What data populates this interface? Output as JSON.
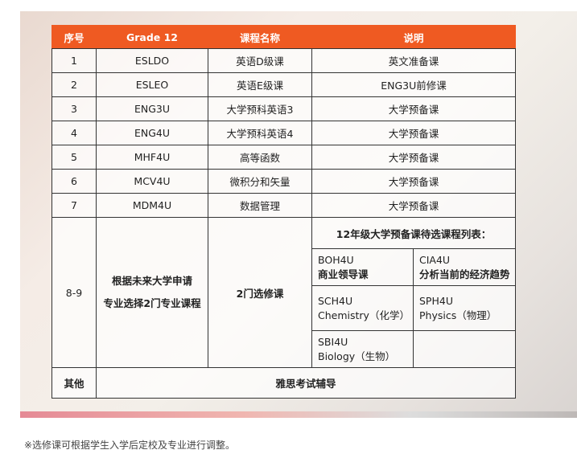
{
  "header": [
    "序号",
    "Grade 12",
    "课程名称",
    "说明"
  ],
  "rows": [
    {
      "no": "1",
      "code": "ESLDO",
      "name": "英语D级课",
      "desc": "英文准备课"
    },
    {
      "no": "2",
      "code": "ESLEO",
      "name": "英语E级课",
      "desc": "ENG3U前修课"
    },
    {
      "no": "3",
      "code": "ENG3U",
      "name": "大学预科英语3",
      "desc": "大学预备课"
    },
    {
      "no": "4",
      "code": "ENG4U",
      "name": "大学预科英语4",
      "desc": "大学预备课"
    },
    {
      "no": "5",
      "code": "MHF4U",
      "name": "高等函数",
      "desc": "大学预备课"
    },
    {
      "no": "6",
      "code": "MCV4U",
      "name": "微积分和矢量",
      "desc": "大学预备课"
    },
    {
      "no": "7",
      "code": "MDM4U",
      "name": "数据管理",
      "desc": "大学预备课"
    }
  ],
  "elective": {
    "no": "8-9",
    "code_line1": "根据未来大学申请",
    "code_line2": "专业选择2门专业课程",
    "name": "2门选修课",
    "list_title": "12年级大学预备课待选课程列表：",
    "options": [
      {
        "code": "BOH4U",
        "name": "商业领导课"
      },
      {
        "code": "CIA4U",
        "name": "分析当前的经济趋势"
      },
      {
        "code": "SCH4U",
        "name": "Chemistry（化学）"
      },
      {
        "code": "SPH4U",
        "name": "Physics（物理）"
      },
      {
        "code": "SBI4U",
        "name": "Biology（生物）"
      }
    ]
  },
  "other": {
    "no": "其他",
    "desc": "雅思考试辅导"
  },
  "footnote": "※选修课可根据学生入学后定校及专业进行调整。",
  "colors": {
    "header_bg": "#ef5a22"
  }
}
